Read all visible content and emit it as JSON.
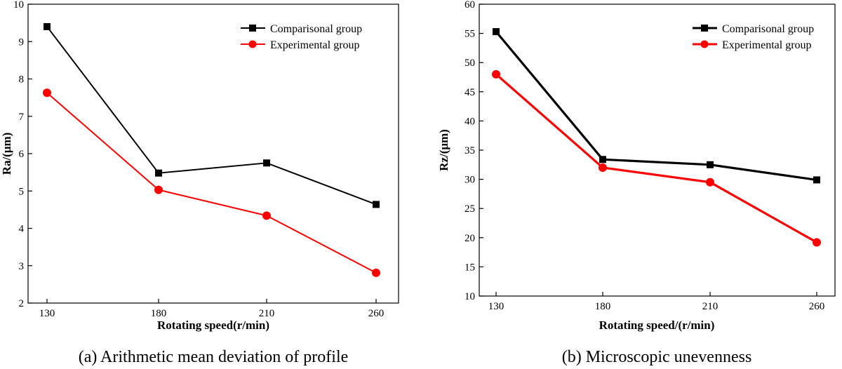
{
  "chart_data": [
    {
      "id": "a",
      "type": "line",
      "title": "",
      "caption": "(a) Arithmetic mean deviation of profile",
      "xlabel": "Rotating speed(r/min)",
      "ylabel": "Ra/(μm)",
      "categories": [
        "130",
        "180",
        "210",
        "260"
      ],
      "ylim": [
        2,
        10
      ],
      "yticks": [
        2,
        3,
        4,
        5,
        6,
        7,
        8,
        9,
        10
      ],
      "legend_position": "top-right",
      "grid": false,
      "series": [
        {
          "name": "Comparisonal group",
          "color": "#000000",
          "marker": "square",
          "values": [
            9.4,
            5.48,
            5.75,
            4.64
          ]
        },
        {
          "name": "Experimental group",
          "color": "#ff0000",
          "marker": "circle",
          "values": [
            7.63,
            5.03,
            4.34,
            2.81
          ]
        }
      ]
    },
    {
      "id": "b",
      "type": "line",
      "title": "",
      "caption": "(b) Microscopic unevenness",
      "xlabel": "Rotating speed/(r/min)",
      "ylabel": "Rz/(μm)",
      "categories": [
        "130",
        "180",
        "210",
        "260"
      ],
      "ylim": [
        10,
        60
      ],
      "yticks": [
        10,
        15,
        20,
        25,
        30,
        35,
        40,
        45,
        50,
        55,
        60
      ],
      "legend_position": "top-right",
      "grid": false,
      "series": [
        {
          "name": "Comparisonal group",
          "color": "#000000",
          "marker": "square",
          "values": [
            55.3,
            33.4,
            32.5,
            29.9
          ]
        },
        {
          "name": "Experimental group",
          "color": "#ff0000",
          "marker": "circle",
          "values": [
            48.0,
            32.0,
            29.5,
            19.2
          ]
        }
      ]
    }
  ]
}
